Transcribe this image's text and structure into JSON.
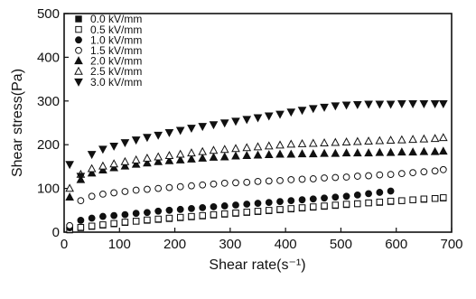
{
  "chart_data": {
    "type": "scatter",
    "xlabel": "Shear rate(s⁻¹)",
    "ylabel": "Shear stress(Pa)",
    "xlim": [
      0,
      700
    ],
    "ylim": [
      0,
      500
    ],
    "x_ticks": [
      "0",
      "100",
      "200",
      "300",
      "400",
      "500",
      "600",
      "700"
    ],
    "y_ticks": [
      "0",
      "100",
      "200",
      "300",
      "400",
      "500"
    ],
    "grid": false,
    "legend_position": "top-left",
    "marker_color": "#111111",
    "series": [
      {
        "name": "0.0  kV/mm",
        "marker": "square-filled",
        "points": [
          [
            10,
            5
          ],
          [
            30,
            10
          ],
          [
            50,
            13
          ],
          [
            70,
            16
          ],
          [
            90,
            19
          ],
          [
            110,
            22
          ],
          [
            130,
            25
          ],
          [
            150,
            27
          ],
          [
            170,
            29
          ],
          [
            190,
            31
          ],
          [
            210,
            33
          ],
          [
            230,
            35
          ],
          [
            250,
            37
          ],
          [
            270,
            39
          ],
          [
            290,
            41
          ],
          [
            310,
            43
          ],
          [
            330,
            45
          ],
          [
            350,
            47
          ],
          [
            370,
            49
          ],
          [
            390,
            51
          ],
          [
            410,
            53
          ],
          [
            430,
            55
          ],
          [
            450,
            57
          ],
          [
            470,
            59
          ],
          [
            490,
            61
          ],
          [
            510,
            63
          ],
          [
            530,
            65
          ],
          [
            550,
            67
          ],
          [
            570,
            68
          ],
          [
            590,
            70
          ],
          [
            610,
            72
          ],
          [
            630,
            74
          ],
          [
            650,
            75
          ],
          [
            670,
            77
          ],
          [
            685,
            78
          ]
        ]
      },
      {
        "name": "0.5  kV/mm",
        "marker": "square-open",
        "points": [
          [
            10,
            6
          ],
          [
            30,
            11
          ],
          [
            50,
            14
          ],
          [
            70,
            17
          ],
          [
            90,
            20
          ],
          [
            110,
            23
          ],
          [
            130,
            25
          ],
          [
            150,
            28
          ],
          [
            170,
            30
          ],
          [
            190,
            32
          ],
          [
            210,
            34
          ],
          [
            230,
            36
          ],
          [
            250,
            38
          ],
          [
            270,
            40
          ],
          [
            290,
            42
          ],
          [
            310,
            44
          ],
          [
            330,
            46
          ],
          [
            350,
            48
          ],
          [
            370,
            50
          ],
          [
            390,
            52
          ],
          [
            410,
            54
          ],
          [
            430,
            56
          ],
          [
            450,
            58
          ],
          [
            470,
            60
          ],
          [
            490,
            62
          ],
          [
            510,
            64
          ],
          [
            530,
            65
          ],
          [
            550,
            67
          ],
          [
            570,
            69
          ],
          [
            590,
            71
          ],
          [
            610,
            72
          ],
          [
            630,
            74
          ],
          [
            650,
            76
          ],
          [
            670,
            77
          ],
          [
            685,
            79
          ]
        ]
      },
      {
        "name": "1.0  kV/mm",
        "marker": "circle-filled",
        "points": [
          [
            10,
            10
          ],
          [
            30,
            27
          ],
          [
            50,
            32
          ],
          [
            70,
            36
          ],
          [
            90,
            38
          ],
          [
            110,
            40
          ],
          [
            130,
            43
          ],
          [
            150,
            45
          ],
          [
            170,
            48
          ],
          [
            190,
            50
          ],
          [
            210,
            52
          ],
          [
            230,
            54
          ],
          [
            250,
            56
          ],
          [
            270,
            58
          ],
          [
            290,
            60
          ],
          [
            310,
            62
          ],
          [
            330,
            64
          ],
          [
            350,
            66
          ],
          [
            370,
            68
          ],
          [
            390,
            70
          ],
          [
            410,
            72
          ],
          [
            430,
            74
          ],
          [
            450,
            76
          ],
          [
            470,
            78
          ],
          [
            490,
            80
          ],
          [
            510,
            82
          ],
          [
            530,
            85
          ],
          [
            550,
            88
          ],
          [
            570,
            91
          ],
          [
            590,
            94
          ]
        ]
      },
      {
        "name": "1.5  kV/mm",
        "marker": "circle-open",
        "points": [
          [
            10,
            15
          ],
          [
            30,
            72
          ],
          [
            50,
            82
          ],
          [
            70,
            87
          ],
          [
            90,
            90
          ],
          [
            110,
            93
          ],
          [
            130,
            96
          ],
          [
            150,
            98
          ],
          [
            170,
            100
          ],
          [
            190,
            102
          ],
          [
            210,
            104
          ],
          [
            230,
            106
          ],
          [
            250,
            108
          ],
          [
            270,
            110
          ],
          [
            290,
            112
          ],
          [
            310,
            113
          ],
          [
            330,
            114
          ],
          [
            350,
            116
          ],
          [
            370,
            117
          ],
          [
            390,
            118
          ],
          [
            410,
            120
          ],
          [
            430,
            121
          ],
          [
            450,
            122
          ],
          [
            470,
            124
          ],
          [
            490,
            125
          ],
          [
            510,
            126
          ],
          [
            530,
            128
          ],
          [
            550,
            129
          ],
          [
            570,
            131
          ],
          [
            590,
            132
          ],
          [
            610,
            134
          ],
          [
            630,
            136
          ],
          [
            650,
            138
          ],
          [
            670,
            140
          ],
          [
            685,
            143
          ]
        ]
      },
      {
        "name": "2.0  kV/mm",
        "marker": "triangle-up-filled",
        "points": [
          [
            10,
            80
          ],
          [
            30,
            120
          ],
          [
            50,
            135
          ],
          [
            70,
            142
          ],
          [
            90,
            147
          ],
          [
            110,
            151
          ],
          [
            130,
            155
          ],
          [
            150,
            158
          ],
          [
            170,
            161
          ],
          [
            190,
            163
          ],
          [
            210,
            165
          ],
          [
            230,
            167
          ],
          [
            250,
            169
          ],
          [
            270,
            171
          ],
          [
            290,
            172
          ],
          [
            310,
            174
          ],
          [
            330,
            175
          ],
          [
            350,
            176
          ],
          [
            370,
            177
          ],
          [
            390,
            178
          ],
          [
            410,
            178
          ],
          [
            430,
            179
          ],
          [
            450,
            179
          ],
          [
            470,
            180
          ],
          [
            490,
            180
          ],
          [
            510,
            181
          ],
          [
            530,
            181
          ],
          [
            550,
            181
          ],
          [
            570,
            182
          ],
          [
            590,
            182
          ],
          [
            610,
            183
          ],
          [
            630,
            183
          ],
          [
            650,
            184
          ],
          [
            670,
            184
          ],
          [
            685,
            185
          ]
        ]
      },
      {
        "name": "2.5  kV/mm",
        "marker": "triangle-up-open",
        "points": [
          [
            10,
            100
          ],
          [
            30,
            132
          ],
          [
            50,
            145
          ],
          [
            70,
            151
          ],
          [
            90,
            156
          ],
          [
            110,
            161
          ],
          [
            130,
            165
          ],
          [
            150,
            169
          ],
          [
            170,
            172
          ],
          [
            190,
            175
          ],
          [
            210,
            178
          ],
          [
            230,
            181
          ],
          [
            250,
            184
          ],
          [
            270,
            187
          ],
          [
            290,
            189
          ],
          [
            310,
            191
          ],
          [
            330,
            193
          ],
          [
            350,
            195
          ],
          [
            370,
            197
          ],
          [
            390,
            199
          ],
          [
            410,
            201
          ],
          [
            430,
            202
          ],
          [
            450,
            203
          ],
          [
            470,
            204
          ],
          [
            490,
            205
          ],
          [
            510,
            206
          ],
          [
            530,
            207
          ],
          [
            550,
            208
          ],
          [
            570,
            209
          ],
          [
            590,
            210
          ],
          [
            610,
            211
          ],
          [
            630,
            212
          ],
          [
            650,
            213
          ],
          [
            670,
            214
          ],
          [
            685,
            216
          ]
        ]
      },
      {
        "name": "3.0  kV/mm",
        "marker": "triangle-down-filled",
        "points": [
          [
            10,
            155
          ],
          [
            30,
            128
          ],
          [
            50,
            178
          ],
          [
            70,
            190
          ],
          [
            90,
            197
          ],
          [
            110,
            205
          ],
          [
            130,
            211
          ],
          [
            150,
            217
          ],
          [
            170,
            222
          ],
          [
            190,
            228
          ],
          [
            210,
            233
          ],
          [
            230,
            238
          ],
          [
            250,
            242
          ],
          [
            270,
            246
          ],
          [
            290,
            250
          ],
          [
            310,
            254
          ],
          [
            330,
            258
          ],
          [
            350,
            262
          ],
          [
            370,
            266
          ],
          [
            390,
            270
          ],
          [
            410,
            275
          ],
          [
            430,
            279
          ],
          [
            450,
            283
          ],
          [
            470,
            286
          ],
          [
            490,
            289
          ],
          [
            510,
            291
          ],
          [
            530,
            292
          ],
          [
            550,
            293
          ],
          [
            570,
            293
          ],
          [
            590,
            293
          ],
          [
            610,
            294
          ],
          [
            630,
            294
          ],
          [
            650,
            294
          ],
          [
            670,
            294
          ],
          [
            685,
            294
          ]
        ]
      }
    ]
  }
}
